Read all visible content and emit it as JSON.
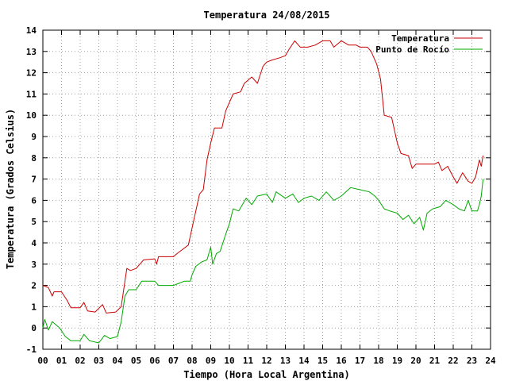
{
  "chart_data": {
    "type": "line",
    "title": "Temperatura 24/08/2015",
    "xlabel": "Tiempo (Hora Local Argentina)",
    "ylabel": "Temperatura (Grados Celsius)",
    "xlim": [
      0,
      24
    ],
    "ylim": [
      -1,
      14
    ],
    "x_ticks": [
      "00",
      "01",
      "02",
      "03",
      "04",
      "05",
      "06",
      "07",
      "08",
      "09",
      "10",
      "11",
      "12",
      "13",
      "14",
      "15",
      "16",
      "17",
      "18",
      "19",
      "20",
      "21",
      "22",
      "23",
      "24"
    ],
    "y_ticks": [
      "-1",
      "0",
      "1",
      "2",
      "3",
      "4",
      "5",
      "6",
      "7",
      "8",
      "9",
      "10",
      "11",
      "12",
      "13",
      "14"
    ],
    "grid": true,
    "legend_position": "top-right",
    "series": [
      {
        "name": "Temperatura",
        "color": "#cc0000",
        "points": [
          [
            0.0,
            2.0
          ],
          [
            0.3,
            1.9
          ],
          [
            0.5,
            1.5
          ],
          [
            0.6,
            1.7
          ],
          [
            1.0,
            1.7
          ],
          [
            1.3,
            1.3
          ],
          [
            1.5,
            0.95
          ],
          [
            2.0,
            0.95
          ],
          [
            2.2,
            1.2
          ],
          [
            2.4,
            0.8
          ],
          [
            2.8,
            0.75
          ],
          [
            3.2,
            1.1
          ],
          [
            3.4,
            0.7
          ],
          [
            3.9,
            0.75
          ],
          [
            4.2,
            1.0
          ],
          [
            4.4,
            2.2
          ],
          [
            4.5,
            2.8
          ],
          [
            4.7,
            2.7
          ],
          [
            5.0,
            2.8
          ],
          [
            5.2,
            3.0
          ],
          [
            5.4,
            3.2
          ],
          [
            6.0,
            3.25
          ],
          [
            6.1,
            3.0
          ],
          [
            6.2,
            3.35
          ],
          [
            7.0,
            3.35
          ],
          [
            7.2,
            3.5
          ],
          [
            7.5,
            3.7
          ],
          [
            7.8,
            3.9
          ],
          [
            8.0,
            4.7
          ],
          [
            8.2,
            5.5
          ],
          [
            8.4,
            6.3
          ],
          [
            8.6,
            6.5
          ],
          [
            8.8,
            7.9
          ],
          [
            9.0,
            8.7
          ],
          [
            9.2,
            9.4
          ],
          [
            9.6,
            9.4
          ],
          [
            9.8,
            10.2
          ],
          [
            10.0,
            10.6
          ],
          [
            10.2,
            11.0
          ],
          [
            10.6,
            11.1
          ],
          [
            10.8,
            11.5
          ],
          [
            11.2,
            11.8
          ],
          [
            11.5,
            11.5
          ],
          [
            11.8,
            12.3
          ],
          [
            12.0,
            12.5
          ],
          [
            12.3,
            12.6
          ],
          [
            12.7,
            12.7
          ],
          [
            13.0,
            12.8
          ],
          [
            13.2,
            13.1
          ],
          [
            13.5,
            13.5
          ],
          [
            13.8,
            13.2
          ],
          [
            14.2,
            13.2
          ],
          [
            14.6,
            13.3
          ],
          [
            15.0,
            13.5
          ],
          [
            15.4,
            13.5
          ],
          [
            15.6,
            13.2
          ],
          [
            16.0,
            13.5
          ],
          [
            16.4,
            13.3
          ],
          [
            16.8,
            13.3
          ],
          [
            17.0,
            13.2
          ],
          [
            17.4,
            13.2
          ],
          [
            17.6,
            13.0
          ],
          [
            17.9,
            12.4
          ],
          [
            18.1,
            11.7
          ],
          [
            18.3,
            10.0
          ],
          [
            18.7,
            9.9
          ],
          [
            19.0,
            8.7
          ],
          [
            19.2,
            8.2
          ],
          [
            19.6,
            8.1
          ],
          [
            19.8,
            7.5
          ],
          [
            20.0,
            7.7
          ],
          [
            20.5,
            7.7
          ],
          [
            21.0,
            7.7
          ],
          [
            21.2,
            7.8
          ],
          [
            21.4,
            7.4
          ],
          [
            21.7,
            7.6
          ],
          [
            22.0,
            7.1
          ],
          [
            22.2,
            6.8
          ],
          [
            22.5,
            7.3
          ],
          [
            22.8,
            6.9
          ],
          [
            23.0,
            6.8
          ],
          [
            23.2,
            7.1
          ],
          [
            23.4,
            7.9
          ],
          [
            23.5,
            7.6
          ],
          [
            23.6,
            8.1
          ]
        ]
      },
      {
        "name": "Punto de Rocío",
        "color": "#00aa00",
        "points": [
          [
            0.0,
            0.0
          ],
          [
            0.1,
            0.4
          ],
          [
            0.3,
            -0.1
          ],
          [
            0.5,
            0.3
          ],
          [
            0.9,
            0.0
          ],
          [
            1.2,
            -0.4
          ],
          [
            1.5,
            -0.6
          ],
          [
            2.0,
            -0.6
          ],
          [
            2.2,
            -0.3
          ],
          [
            2.5,
            -0.6
          ],
          [
            3.0,
            -0.7
          ],
          [
            3.3,
            -0.35
          ],
          [
            3.6,
            -0.5
          ],
          [
            4.0,
            -0.4
          ],
          [
            4.2,
            0.3
          ],
          [
            4.4,
            1.5
          ],
          [
            4.6,
            1.8
          ],
          [
            5.0,
            1.8
          ],
          [
            5.3,
            2.2
          ],
          [
            6.0,
            2.2
          ],
          [
            6.2,
            2.0
          ],
          [
            7.0,
            2.0
          ],
          [
            7.3,
            2.1
          ],
          [
            7.6,
            2.2
          ],
          [
            7.9,
            2.2
          ],
          [
            8.0,
            2.5
          ],
          [
            8.2,
            2.9
          ],
          [
            8.5,
            3.1
          ],
          [
            8.8,
            3.2
          ],
          [
            9.0,
            3.8
          ],
          [
            9.1,
            3.0
          ],
          [
            9.3,
            3.5
          ],
          [
            9.5,
            3.6
          ],
          [
            9.8,
            4.4
          ],
          [
            10.0,
            4.9
          ],
          [
            10.2,
            5.6
          ],
          [
            10.5,
            5.5
          ],
          [
            10.9,
            6.1
          ],
          [
            11.2,
            5.8
          ],
          [
            11.5,
            6.2
          ],
          [
            12.0,
            6.3
          ],
          [
            12.3,
            5.9
          ],
          [
            12.5,
            6.4
          ],
          [
            13.0,
            6.1
          ],
          [
            13.4,
            6.3
          ],
          [
            13.7,
            5.9
          ],
          [
            14.0,
            6.1
          ],
          [
            14.4,
            6.2
          ],
          [
            14.8,
            6.0
          ],
          [
            15.2,
            6.4
          ],
          [
            15.6,
            6.0
          ],
          [
            16.0,
            6.2
          ],
          [
            16.5,
            6.6
          ],
          [
            17.0,
            6.5
          ],
          [
            17.5,
            6.4
          ],
          [
            17.8,
            6.2
          ],
          [
            18.0,
            6.0
          ],
          [
            18.3,
            5.6
          ],
          [
            18.6,
            5.5
          ],
          [
            19.0,
            5.4
          ],
          [
            19.3,
            5.1
          ],
          [
            19.6,
            5.3
          ],
          [
            19.9,
            4.9
          ],
          [
            20.2,
            5.2
          ],
          [
            20.4,
            4.6
          ],
          [
            20.6,
            5.4
          ],
          [
            20.9,
            5.6
          ],
          [
            21.3,
            5.7
          ],
          [
            21.6,
            6.0
          ],
          [
            22.0,
            5.8
          ],
          [
            22.3,
            5.6
          ],
          [
            22.6,
            5.5
          ],
          [
            22.8,
            6.0
          ],
          [
            23.0,
            5.5
          ],
          [
            23.3,
            5.5
          ],
          [
            23.4,
            5.8
          ],
          [
            23.5,
            6.2
          ],
          [
            23.6,
            7.0
          ]
        ]
      }
    ]
  }
}
